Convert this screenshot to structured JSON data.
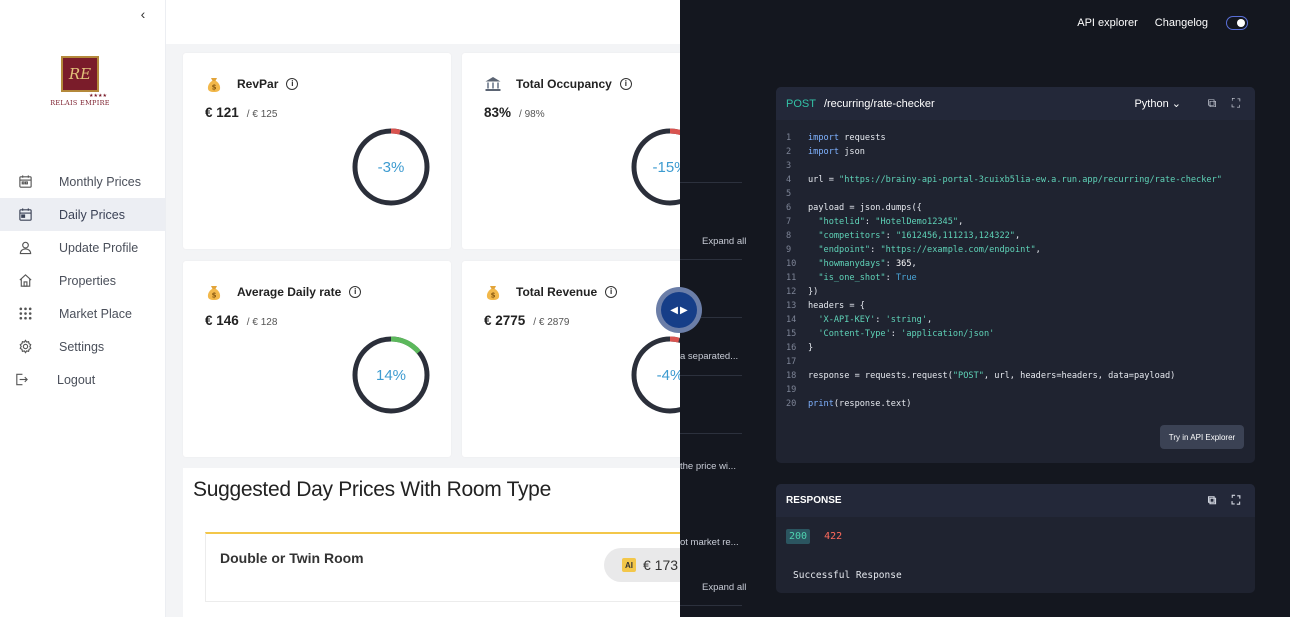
{
  "sidebar": {
    "logo": {
      "monogram": "RE",
      "name": "RELAIS EMPIRE",
      "stars": "★★★★"
    },
    "items": [
      {
        "label": "Monthly Prices",
        "icon": "calendar-icon"
      },
      {
        "label": "Daily Prices",
        "icon": "daily-calendar-icon"
      },
      {
        "label": "Update Profile",
        "icon": "user-icon"
      },
      {
        "label": "Properties",
        "icon": "home-icon"
      },
      {
        "label": "Market Place",
        "icon": "grid-icon"
      },
      {
        "label": "Settings",
        "icon": "gear-icon"
      },
      {
        "label": "Logout",
        "icon": "logout-icon"
      }
    ],
    "active": "Daily Prices"
  },
  "kpis": {
    "revpar": {
      "title": "RevPar",
      "value": "€ 121",
      "compare": "/ € 125",
      "change": "-3%",
      "progress": 0.03,
      "arc_color": "#d9534f"
    },
    "occupancy": {
      "title": "Total Occupancy",
      "value": "83%",
      "compare": "/ 98%",
      "change": "-15%",
      "progress": 0.15,
      "arc_color": "#d9534f"
    },
    "adr": {
      "title": "Average Daily rate",
      "value": "€ 146",
      "compare": "/ € 128",
      "change": "14%",
      "progress": 0.14,
      "arc_color": "#5cb85c"
    },
    "revenue": {
      "title": "Total Revenue",
      "value": "€ 2775",
      "compare": "/ € 2879",
      "change": "-4%",
      "progress": 0.04,
      "arc_color": "#d9534f"
    }
  },
  "suggested": {
    "title": "Suggested Day Prices With Room Type",
    "room": {
      "name": "Double or Twin Room",
      "ai_label": "AI",
      "price": "€ 173"
    }
  },
  "overlay_text": {
    "expand_all_1": "Expand all",
    "comma_separated": "a separated...",
    "price_wi": "the price wi...",
    "market_re": "ot market re...",
    "expand_all_2": "Expand all"
  },
  "panel": {
    "links": {
      "api_explorer": "API explorer",
      "changelog": "Changelog"
    },
    "request": {
      "method": "POST",
      "path": "/recurring/rate-checker",
      "language": "Python",
      "try_label": "Try in API Explorer"
    },
    "response": {
      "title": "RESPONSE",
      "code_ok": "200",
      "code_err": "422",
      "message": "Successful Response"
    },
    "colors": {
      "background": "#14171f",
      "box": "#1f2330",
      "accent": "#33c1a6"
    }
  }
}
